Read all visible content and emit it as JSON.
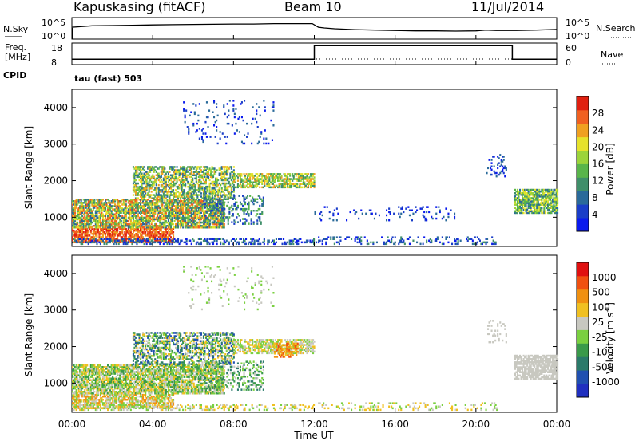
{
  "header": {
    "station": "Kapuskasing (fitACF)",
    "beam": "Beam 10",
    "date": "11/Jul/2014"
  },
  "noise_panel": {
    "left_label": "N.Sky",
    "right_label": "N.Search",
    "left_ticks": [
      "10^5",
      "10^0"
    ],
    "right_ticks": [
      "10^5",
      "10^0"
    ]
  },
  "freq_panel": {
    "left_label_1": "Freq.",
    "left_label_2": "[MHz]",
    "right_label": "Nave",
    "left_ticks": [
      "18",
      "8"
    ],
    "right_ticks": [
      "60",
      "0"
    ],
    "cpid_label": "CPID",
    "cpid_value": "tau (fast) 503"
  },
  "chart_data": [
    {
      "type": "line",
      "name": "noise",
      "series": [
        {
          "name": "N.Sky",
          "x": [
            0,
            1,
            2,
            3,
            4,
            5,
            6,
            7,
            8,
            9,
            10,
            11,
            11.9,
            12.2,
            12.5,
            13,
            14,
            15,
            16,
            17,
            18,
            19,
            20,
            20.5,
            21,
            22,
            23,
            24
          ],
          "y": [
            0.55,
            0.62,
            0.63,
            0.64,
            0.66,
            0.67,
            0.68,
            0.69,
            0.7,
            0.7,
            0.72,
            0.72,
            0.72,
            0.55,
            0.52,
            0.48,
            0.44,
            0.42,
            0.4,
            0.38,
            0.38,
            0.37,
            0.38,
            0.42,
            0.4,
            0.4,
            0.42,
            0.45
          ]
        }
      ]
    },
    {
      "type": "line",
      "name": "frequency",
      "ylabel": "Freq. [MHz]",
      "ylim": [
        8,
        18
      ],
      "series": [
        {
          "name": "Freq.",
          "x": [
            0,
            12,
            12,
            21.8,
            21.8,
            24
          ],
          "y": [
            10.5,
            10.5,
            16.8,
            16.8,
            10.5,
            10.5
          ]
        }
      ]
    },
    {
      "type": "heatmap",
      "name": "power",
      "ylabel": "Slant Range [km]",
      "xlabel": "Time UT",
      "ylim": [
        200,
        4500
      ],
      "xlim": [
        0,
        24
      ],
      "yticks": [
        1000,
        2000,
        3000,
        4000
      ],
      "xticks": [
        "00:00",
        "04:00",
        "08:00",
        "12:00",
        "16:00",
        "20:00",
        "00:00"
      ],
      "colorbar": {
        "label": "Power [dB]",
        "ticks": [
          "4",
          "8",
          "12",
          "16",
          "20",
          "24",
          "28"
        ],
        "colors": [
          "#0a1aee",
          "#1a3ec8",
          "#2a6a9a",
          "#3f8f6a",
          "#59b54a",
          "#9cd43a",
          "#e6e22a",
          "#f0a020",
          "#f06020",
          "#e02010"
        ]
      }
    },
    {
      "type": "heatmap",
      "name": "velocity",
      "ylabel": "Slant Range [km]",
      "xlabel": "Time UT",
      "ylim": [
        200,
        4500
      ],
      "xlim": [
        0,
        24
      ],
      "yticks": [
        1000,
        2000,
        3000,
        4000
      ],
      "xticks": [
        "00:00",
        "04:00",
        "08:00",
        "12:00",
        "16:00",
        "20:00",
        "00:00"
      ],
      "colorbar": {
        "label": "Velocity [m s^-1]",
        "ticks": [
          "1000",
          "500",
          "100",
          "25",
          "-25",
          "-100",
          "-500",
          "-1000"
        ],
        "colors": [
          "#2030c0",
          "#2050b0",
          "#2a7a6a",
          "#3a9a4a",
          "#7ad040",
          "#c8c8c0",
          "#f0c020",
          "#f09010",
          "#f05010",
          "#e01010"
        ]
      }
    }
  ],
  "xaxis_label": "Time UT",
  "power_label": "Power [dB]",
  "velocity_label": "Velocity",
  "velocity_unit": "[m s",
  "velocity_unit_exp": "-1",
  "velocity_unit_end": "]",
  "ylabel": "Slant Range [km]"
}
